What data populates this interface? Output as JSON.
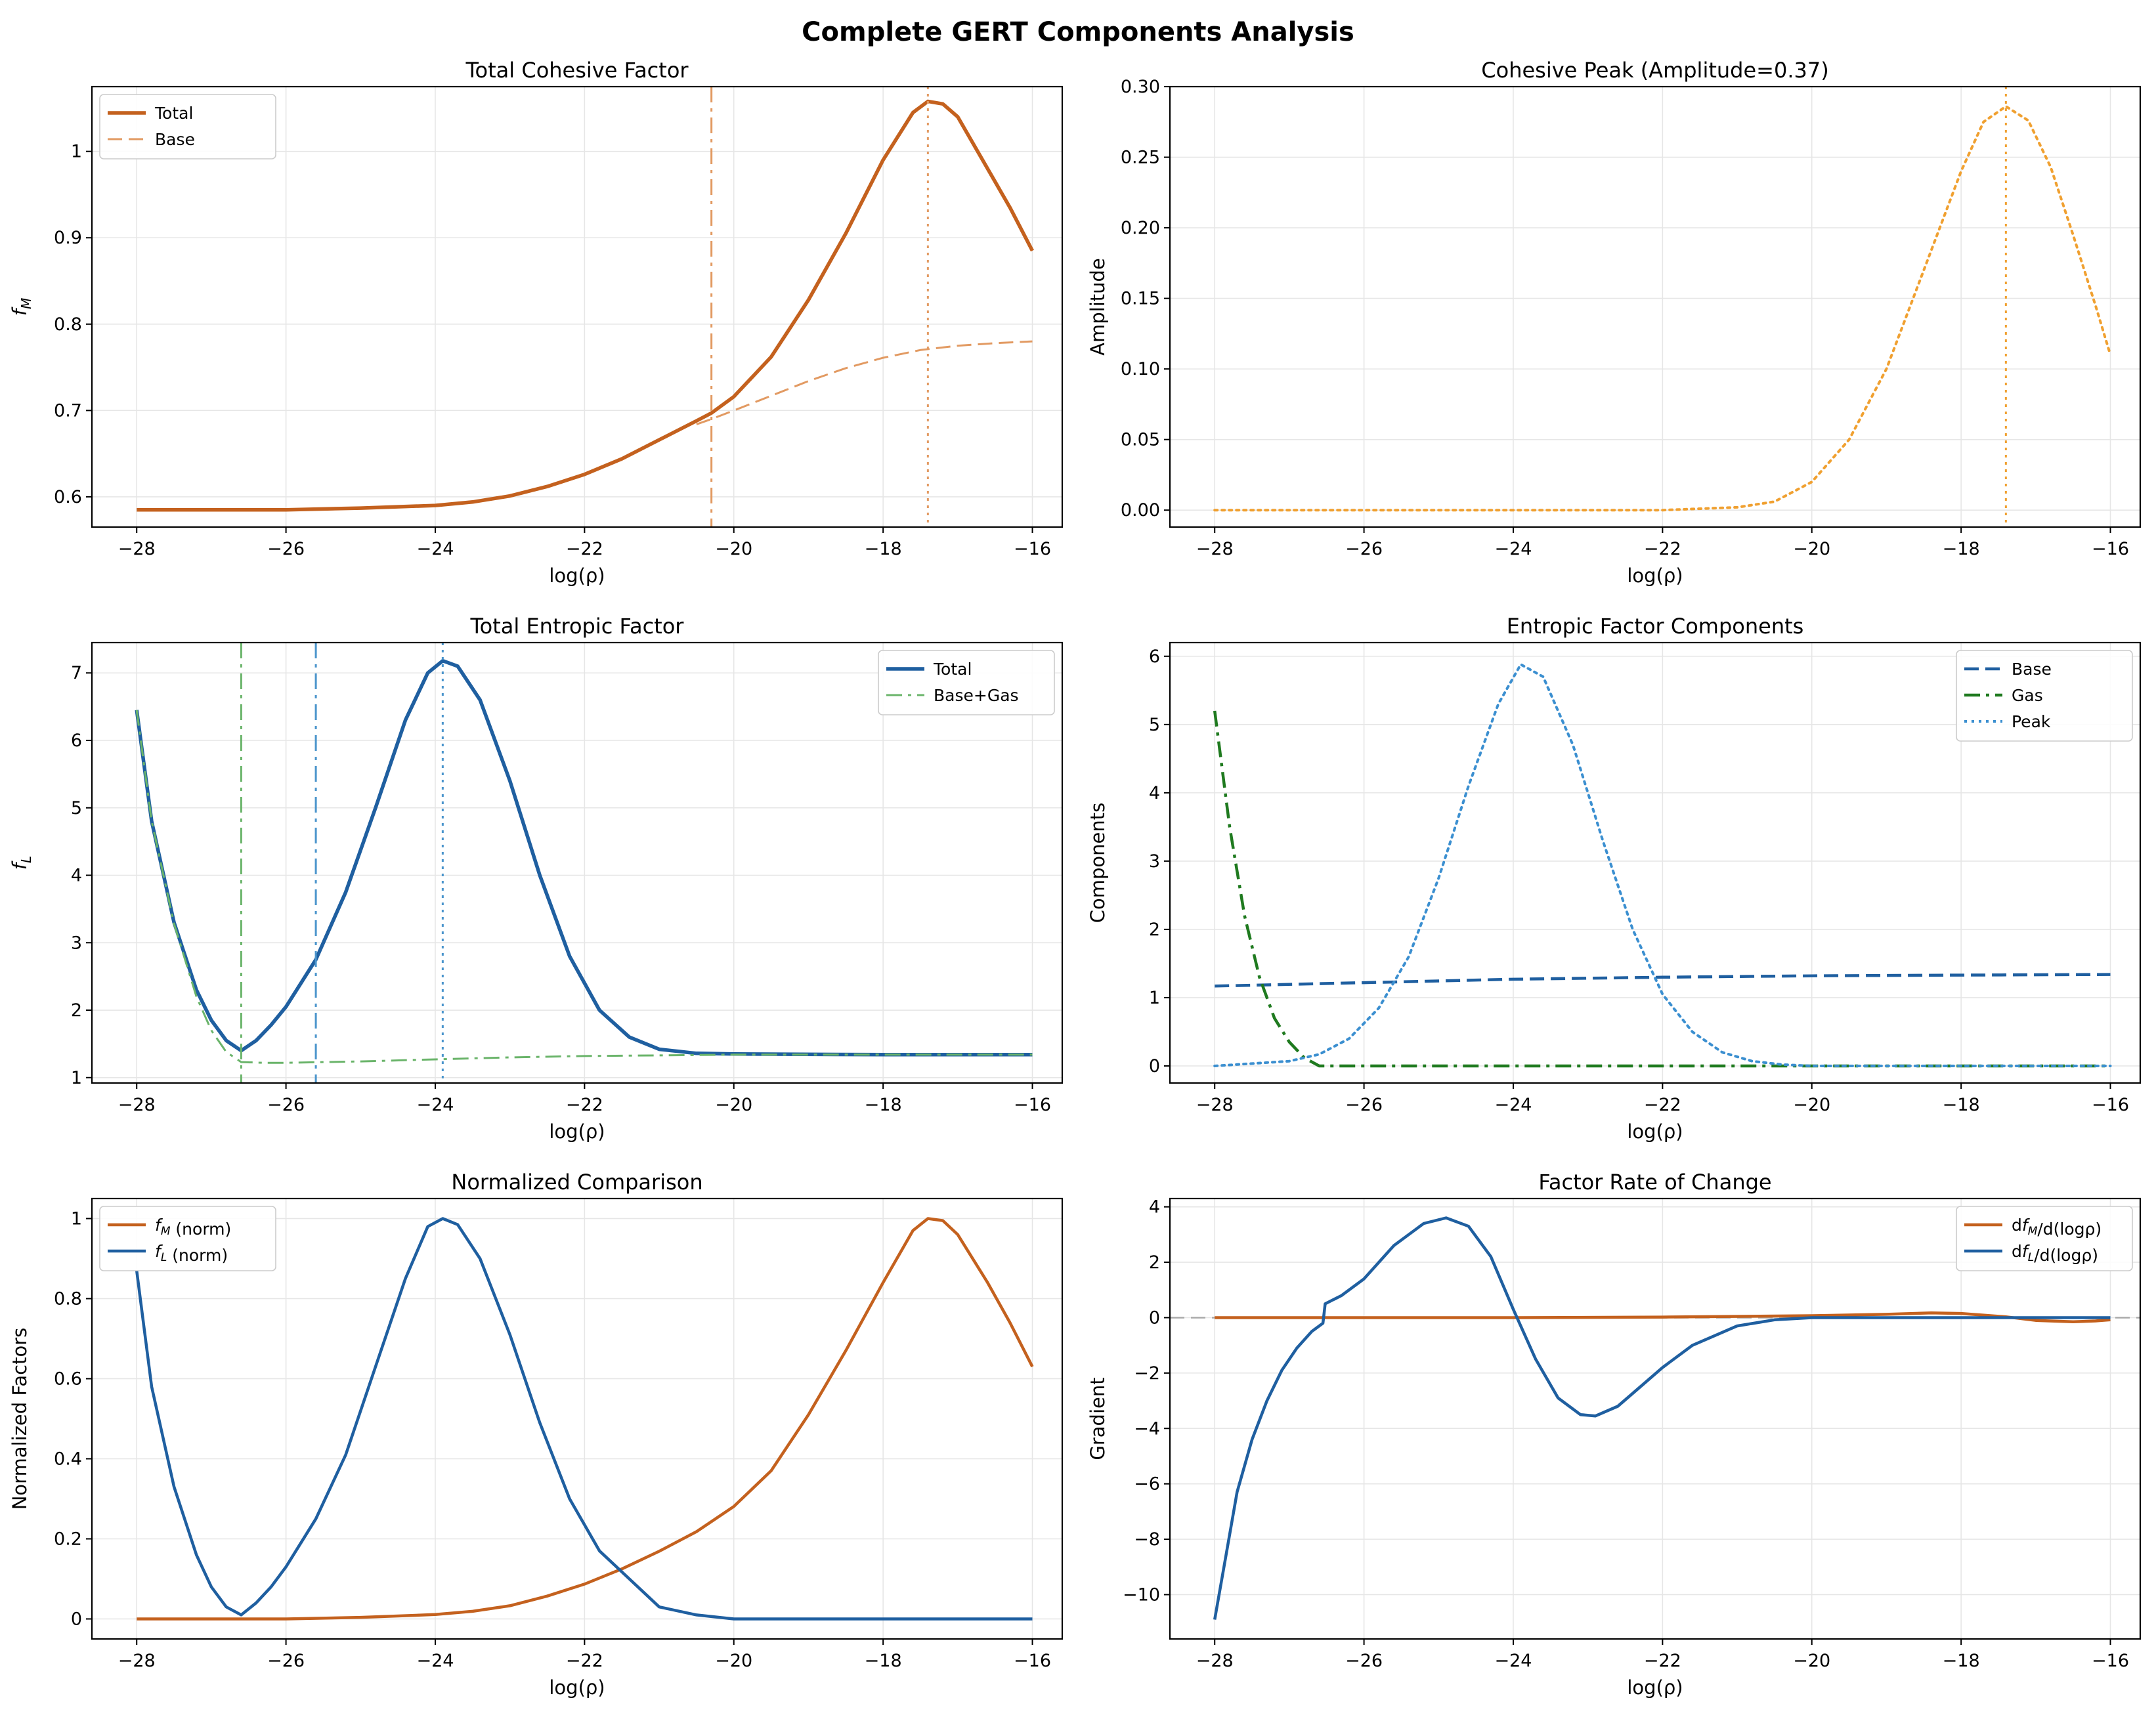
{
  "figure_title": "Complete GERT Components Analysis",
  "colors": {
    "orange": "#c4611e",
    "light_orange": "#e29a62",
    "amber": "#f0a030",
    "blue": "#1f5fa0",
    "light_blue": "#4b95cc",
    "dotted_blue": "#3b8fd0",
    "green": "#1f7a1f",
    "light_green": "#6ab46a",
    "zero_line": "#aaaaaa"
  },
  "chart_data": [
    {
      "id": "p1",
      "type": "line",
      "title": "Total Cohesive Factor",
      "xlabel": "log(ρ)",
      "ylabel": "f_M",
      "xlim": [
        -28.6,
        -15.6
      ],
      "ylim": [
        0.565,
        1.075
      ],
      "xticks": [
        -28,
        -26,
        -24,
        -22,
        -20,
        -18,
        -16
      ],
      "yticks": [
        0.6,
        0.7,
        0.8,
        0.9,
        1.0
      ],
      "grid": true,
      "legend": "top-left",
      "series": [
        {
          "name": "Total",
          "style": "solid",
          "color": "#c4611e",
          "width": 5.5,
          "x": [
            -28,
            -27,
            -26,
            -25,
            -24,
            -23.5,
            -23,
            -22.5,
            -22,
            -21.5,
            -21,
            -20.5,
            -20.3,
            -20,
            -19.5,
            -19,
            -18.5,
            -18,
            -17.6,
            -17.4,
            -17.2,
            -17,
            -16.6,
            -16.3,
            -16
          ],
          "y": [
            0.585,
            0.585,
            0.585,
            0.587,
            0.59,
            0.594,
            0.601,
            0.612,
            0.626,
            0.644,
            0.666,
            0.688,
            0.697,
            0.716,
            0.762,
            0.828,
            0.905,
            0.99,
            1.045,
            1.058,
            1.055,
            1.04,
            0.98,
            0.935,
            0.885
          ]
        },
        {
          "name": "Base",
          "style": "dashed",
          "color": "#e29a62",
          "width": 3,
          "x": [
            -20.5,
            -20.3,
            -20,
            -19.5,
            -19,
            -18.5,
            -18,
            -17.5,
            -17,
            -16.5,
            -16
          ],
          "y": [
            0.684,
            0.69,
            0.7,
            0.717,
            0.734,
            0.749,
            0.761,
            0.77,
            0.775,
            0.778,
            0.78
          ]
        }
      ],
      "vlines": [
        {
          "x": -20.3,
          "style": "dashdot",
          "color": "#e29a62"
        },
        {
          "x": -17.4,
          "style": "dotted",
          "color": "#e29a62"
        }
      ]
    },
    {
      "id": "p2",
      "type": "line",
      "title": "Cohesive Peak (Amplitude=0.37)",
      "xlabel": "log(ρ)",
      "ylabel": "Amplitude",
      "xlim": [
        -28.6,
        -15.6
      ],
      "ylim": [
        -0.012,
        0.3
      ],
      "xticks": [
        -28,
        -26,
        -24,
        -22,
        -20,
        -18,
        -16
      ],
      "yticks": [
        0.0,
        0.05,
        0.1,
        0.15,
        0.2,
        0.25,
        0.3
      ],
      "ytick_labels": [
        "0.00",
        "0.05",
        "0.10",
        "0.15",
        "0.20",
        "0.25",
        "0.30"
      ],
      "grid": true,
      "series": [
        {
          "name": "",
          "style": "dotted",
          "color": "#f0a030",
          "width": 4,
          "x": [
            -28,
            -22,
            -21,
            -20.5,
            -20,
            -19.5,
            -19,
            -18.5,
            -18,
            -17.7,
            -17.4,
            -17.1,
            -16.8,
            -16.5,
            -16.2,
            -16
          ],
          "y": [
            0,
            0,
            0.002,
            0.006,
            0.02,
            0.05,
            0.1,
            0.17,
            0.24,
            0.275,
            0.286,
            0.276,
            0.243,
            0.195,
            0.145,
            0.11
          ]
        }
      ],
      "vlines": [
        {
          "x": -17.4,
          "style": "dotted",
          "color": "#f0a030"
        }
      ]
    },
    {
      "id": "p3",
      "type": "line",
      "title": "Total Entropic Factor",
      "xlabel": "log(ρ)",
      "ylabel": "f_L",
      "xlim": [
        -28.6,
        -15.6
      ],
      "ylim": [
        0.92,
        7.45
      ],
      "xticks": [
        -28,
        -26,
        -24,
        -22,
        -20,
        -18,
        -16
      ],
      "yticks": [
        1,
        2,
        3,
        4,
        5,
        6,
        7
      ],
      "grid": true,
      "legend": "top-right",
      "series": [
        {
          "name": "Total",
          "style": "solid",
          "color": "#1f5fa0",
          "width": 5.5,
          "x": [
            -28,
            -27.8,
            -27.5,
            -27.2,
            -27,
            -26.8,
            -26.6,
            -26.4,
            -26.2,
            -26,
            -25.6,
            -25.2,
            -24.8,
            -24.4,
            -24.1,
            -23.9,
            -23.7,
            -23.4,
            -23,
            -22.6,
            -22.2,
            -21.8,
            -21.4,
            -21,
            -20.5,
            -20,
            -18,
            -16
          ],
          "y": [
            6.45,
            4.8,
            3.3,
            2.3,
            1.85,
            1.55,
            1.4,
            1.55,
            1.78,
            2.05,
            2.75,
            3.75,
            5.0,
            6.3,
            7.0,
            7.18,
            7.1,
            6.6,
            5.4,
            4.0,
            2.8,
            2.0,
            1.6,
            1.42,
            1.36,
            1.35,
            1.34,
            1.34
          ]
        },
        {
          "name": "Base+Gas",
          "style": "dashdot",
          "color": "#6ab46a",
          "width": 3,
          "x": [
            -28,
            -27.8,
            -27.5,
            -27.2,
            -27,
            -26.8,
            -26.6,
            -26.3,
            -26,
            -25,
            -24,
            -23,
            -22,
            -21,
            -20,
            -18,
            -16
          ],
          "y": [
            6.45,
            4.8,
            3.28,
            2.2,
            1.7,
            1.38,
            1.23,
            1.22,
            1.22,
            1.24,
            1.27,
            1.3,
            1.32,
            1.33,
            1.34,
            1.34,
            1.34
          ]
        }
      ],
      "vlines": [
        {
          "x": -26.6,
          "style": "dashdot",
          "color": "#6ab46a"
        },
        {
          "x": -25.6,
          "style": "dashdot",
          "color": "#4b95cc"
        },
        {
          "x": -23.9,
          "style": "dotted",
          "color": "#4b95cc"
        }
      ]
    },
    {
      "id": "p4",
      "type": "line",
      "title": "Entropic Factor Components",
      "xlabel": "log(ρ)",
      "ylabel": "Components",
      "xlim": [
        -28.6,
        -15.6
      ],
      "ylim": [
        -0.25,
        6.2
      ],
      "xticks": [
        -28,
        -26,
        -24,
        -22,
        -20,
        -18,
        -16
      ],
      "yticks": [
        0,
        1,
        2,
        3,
        4,
        5,
        6
      ],
      "grid": true,
      "legend": "top-right",
      "series": [
        {
          "name": "Base",
          "style": "dashed",
          "color": "#1f5fa0",
          "width": 4.5,
          "x": [
            -28,
            -26,
            -24,
            -22,
            -20,
            -18,
            -16
          ],
          "y": [
            1.17,
            1.22,
            1.27,
            1.3,
            1.32,
            1.33,
            1.34
          ]
        },
        {
          "name": "Gas",
          "style": "dashdot",
          "color": "#1f7a1f",
          "width": 4.5,
          "x": [
            -28,
            -27.8,
            -27.6,
            -27.4,
            -27.2,
            -27,
            -26.8,
            -26.6,
            -26,
            -16
          ],
          "y": [
            5.2,
            3.5,
            2.2,
            1.3,
            0.7,
            0.35,
            0.12,
            0.0,
            0.0,
            0.0
          ]
        },
        {
          "name": "Peak",
          "style": "dotted",
          "color": "#3b8fd0",
          "width": 4,
          "x": [
            -28,
            -27,
            -26.6,
            -26.2,
            -25.8,
            -25.4,
            -25,
            -24.6,
            -24.2,
            -23.9,
            -23.6,
            -23.2,
            -22.8,
            -22.4,
            -22,
            -21.6,
            -21.2,
            -20.8,
            -20.4,
            -20,
            -18,
            -16
          ],
          "y": [
            0,
            0.07,
            0.17,
            0.4,
            0.85,
            1.6,
            2.75,
            4.1,
            5.3,
            5.88,
            5.7,
            4.7,
            3.3,
            2.0,
            1.05,
            0.5,
            0.2,
            0.07,
            0.02,
            0,
            0,
            0
          ]
        }
      ]
    },
    {
      "id": "p5",
      "type": "line",
      "title": "Normalized Comparison",
      "xlabel": "log(ρ)",
      "ylabel": "Normalized Factors",
      "xlim": [
        -28.6,
        -15.6
      ],
      "ylim": [
        -0.05,
        1.05
      ],
      "xticks": [
        -28,
        -26,
        -24,
        -22,
        -20,
        -18,
        -16
      ],
      "yticks": [
        0.0,
        0.2,
        0.4,
        0.6,
        0.8,
        1.0
      ],
      "grid": true,
      "legend": "top-left",
      "series": [
        {
          "name": "f_M (norm)",
          "style": "solid",
          "color": "#c4611e",
          "width": 4.5,
          "x": [
            -28,
            -27,
            -26,
            -25,
            -24,
            -23.5,
            -23,
            -22.5,
            -22,
            -21.5,
            -21,
            -20.5,
            -20,
            -19.5,
            -19,
            -18.5,
            -18,
            -17.6,
            -17.4,
            -17.2,
            -17,
            -16.6,
            -16.3,
            -16
          ],
          "y": [
            0,
            0,
            0,
            0.004,
            0.011,
            0.019,
            0.033,
            0.057,
            0.087,
            0.125,
            0.169,
            0.218,
            0.281,
            0.37,
            0.51,
            0.67,
            0.84,
            0.97,
            1.0,
            0.995,
            0.96,
            0.84,
            0.74,
            0.63
          ]
        },
        {
          "name": "f_L (norm)",
          "style": "solid",
          "color": "#1f5fa0",
          "width": 4.5,
          "x": [
            -28,
            -27.8,
            -27.5,
            -27.2,
            -27,
            -26.8,
            -26.6,
            -26.4,
            -26.2,
            -26,
            -25.6,
            -25.2,
            -24.8,
            -24.4,
            -24.1,
            -23.9,
            -23.7,
            -23.4,
            -23,
            -22.6,
            -22.2,
            -21.8,
            -21.4,
            -21,
            -20.5,
            -20,
            -18,
            -16
          ],
          "y": [
            0.87,
            0.58,
            0.33,
            0.16,
            0.08,
            0.03,
            0.01,
            0.04,
            0.08,
            0.13,
            0.25,
            0.41,
            0.63,
            0.85,
            0.98,
            1.0,
            0.985,
            0.9,
            0.71,
            0.49,
            0.3,
            0.17,
            0.1,
            0.03,
            0.01,
            0.0,
            0.0,
            0.0
          ]
        }
      ]
    },
    {
      "id": "p6",
      "type": "line",
      "title": "Factor Rate of Change",
      "xlabel": "log(ρ)",
      "ylabel": "Gradient",
      "xlim": [
        -28.6,
        -15.6
      ],
      "ylim": [
        -11.6,
        4.3
      ],
      "xticks": [
        -28,
        -26,
        -24,
        -22,
        -20,
        -18,
        -16
      ],
      "yticks": [
        -10,
        -8,
        -6,
        -4,
        -2,
        0,
        2,
        4
      ],
      "grid": true,
      "legend": "top-right",
      "hline": {
        "y": 0,
        "style": "dashed",
        "color": "#aaaaaa"
      },
      "series": [
        {
          "name": "df_M/d(logρ)",
          "style": "solid",
          "color": "#c4611e",
          "width": 4.5,
          "x": [
            -28,
            -24,
            -22,
            -20,
            -19,
            -18.4,
            -18,
            -17.4,
            -17,
            -16.5,
            -16.2,
            -16
          ],
          "y": [
            0,
            0,
            0.02,
            0.07,
            0.12,
            0.17,
            0.15,
            0.03,
            -0.1,
            -0.15,
            -0.12,
            -0.08
          ]
        },
        {
          "name": "df_L/d(logρ)",
          "style": "solid",
          "color": "#1f5fa0",
          "width": 4.5,
          "x": [
            -28,
            -27.85,
            -27.7,
            -27.5,
            -27.3,
            -27.1,
            -26.9,
            -26.7,
            -26.55,
            -26.52,
            -26.3,
            -26,
            -25.6,
            -25.2,
            -24.9,
            -24.6,
            -24.3,
            -24,
            -23.7,
            -23.4,
            -23.1,
            -22.9,
            -22.6,
            -22.3,
            -22,
            -21.6,
            -21,
            -20.5,
            -20,
            -18,
            -16
          ],
          "y": [
            -10.9,
            -8.6,
            -6.3,
            -4.4,
            -3.0,
            -1.9,
            -1.1,
            -0.5,
            -0.2,
            0.5,
            0.8,
            1.4,
            2.6,
            3.4,
            3.6,
            3.3,
            2.2,
            0.3,
            -1.5,
            -2.9,
            -3.5,
            -3.55,
            -3.2,
            -2.5,
            -1.8,
            -1.0,
            -0.3,
            -0.08,
            0,
            0,
            0
          ]
        }
      ]
    }
  ]
}
